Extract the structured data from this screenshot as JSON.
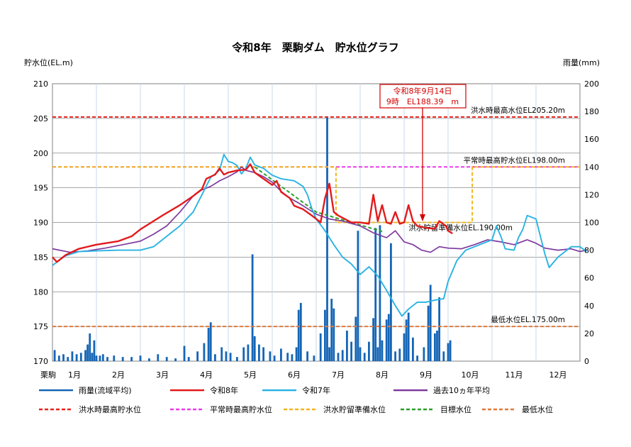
{
  "chart_data": {
    "type": "line",
    "title": "令和8年　栗駒ダム　貯水位グラフ",
    "ylabel_left": "貯水位(EL.m)",
    "ylabel_right": "雨量(mm)",
    "corner_label": "栗駒",
    "months": [
      "1月",
      "2月",
      "3月",
      "4月",
      "5月",
      "6月",
      "7月",
      "8月",
      "9月",
      "10月",
      "11月",
      "12月"
    ],
    "ylim_left": [
      170,
      210
    ],
    "yticks_left": [
      170,
      175,
      180,
      185,
      190,
      195,
      200,
      205,
      210
    ],
    "ylim_right": [
      0,
      200
    ],
    "yticks_right": [
      0,
      20,
      40,
      60,
      80,
      100,
      120,
      140,
      160,
      180,
      200
    ],
    "grid": true,
    "legend_position": "bottom",
    "reference_lines": [
      {
        "name": "洪水時最高貯水位",
        "label": "洪水時最高水位EL205.20m",
        "value": 205.2,
        "color": "#e8231d",
        "dash": "5,3"
      },
      {
        "name": "平常時最高貯水位",
        "label": "平常時最高貯水位EL198.00m",
        "value": 198.0,
        "color": "#ea3cea",
        "dash": "5,3"
      },
      {
        "name": "最低水位",
        "label": "最低水位EL.175.00m",
        "value": 175.0,
        "color": "#e07a3a",
        "dash": "5,3"
      }
    ],
    "flood_reserve": {
      "name": "洪水貯留準備水位",
      "label": "洪水貯留準備水位EL.190.00m",
      "color": "#f2b61f",
      "points": [
        [
          0.0,
          198.0
        ],
        [
          6.45,
          198.0
        ],
        [
          6.45,
          190.0
        ],
        [
          9.55,
          190.0
        ],
        [
          9.55,
          198.0
        ],
        [
          12.0,
          198.0
        ]
      ]
    },
    "target": {
      "name": "目標水位",
      "color": "#2ca02c",
      "points": [
        [
          4.6,
          198.0
        ],
        [
          6.0,
          191.5
        ],
        [
          7.5,
          188.7
        ]
      ]
    },
    "series": [
      {
        "name": "令和8年",
        "color": "#e31a1c",
        "width": 2.4,
        "points": [
          [
            0.0,
            185.0
          ],
          [
            0.1,
            184.3
          ],
          [
            0.3,
            185.3
          ],
          [
            0.6,
            186.2
          ],
          [
            1.0,
            186.8
          ],
          [
            1.5,
            187.3
          ],
          [
            1.8,
            188.0
          ],
          [
            2.0,
            189.0
          ],
          [
            2.5,
            191.0
          ],
          [
            2.9,
            192.5
          ],
          [
            3.2,
            193.8
          ],
          [
            3.4,
            194.8
          ],
          [
            3.5,
            196.3
          ],
          [
            3.7,
            196.9
          ],
          [
            3.8,
            197.8
          ],
          [
            3.9,
            196.9
          ],
          [
            4.0,
            197.2
          ],
          [
            4.2,
            197.5
          ],
          [
            4.4,
            197.6
          ],
          [
            4.5,
            198.4
          ],
          [
            4.6,
            197.2
          ],
          [
            4.8,
            196.3
          ],
          [
            5.0,
            195.4
          ],
          [
            5.1,
            196.0
          ],
          [
            5.2,
            194.4
          ],
          [
            5.4,
            193.5
          ],
          [
            5.5,
            192.4
          ],
          [
            5.7,
            191.9
          ],
          [
            5.9,
            191.0
          ],
          [
            6.1,
            190.0
          ],
          [
            6.2,
            193.5
          ],
          [
            6.3,
            195.6
          ],
          [
            6.4,
            191.5
          ],
          [
            6.5,
            191.0
          ],
          [
            6.8,
            190.0
          ],
          [
            7.0,
            190.0
          ],
          [
            7.2,
            189.8
          ],
          [
            7.3,
            194.0
          ],
          [
            7.4,
            190.2
          ],
          [
            7.5,
            192.5
          ],
          [
            7.6,
            190.0
          ],
          [
            7.7,
            189.8
          ],
          [
            7.8,
            191.5
          ],
          [
            7.9,
            189.8
          ],
          [
            8.0,
            190.0
          ],
          [
            8.1,
            192.5
          ],
          [
            8.2,
            190.2
          ],
          [
            8.3,
            189.5
          ],
          [
            8.5,
            189.2
          ],
          [
            8.7,
            189.1
          ],
          [
            8.8,
            190.2
          ],
          [
            8.95,
            189.5
          ],
          [
            9.0,
            188.8
          ],
          [
            9.1,
            188.4
          ]
        ]
      },
      {
        "name": "令和7年",
        "color": "#29b3e3",
        "width": 1.9,
        "points": [
          [
            0.0,
            183.8
          ],
          [
            0.3,
            185.2
          ],
          [
            0.6,
            185.8
          ],
          [
            1.0,
            185.9
          ],
          [
            1.5,
            186.0
          ],
          [
            2.0,
            186.0
          ],
          [
            2.3,
            186.5
          ],
          [
            2.6,
            188.0
          ],
          [
            2.9,
            189.5
          ],
          [
            3.2,
            191.5
          ],
          [
            3.4,
            194.0
          ],
          [
            3.6,
            196.5
          ],
          [
            3.8,
            197.5
          ],
          [
            3.9,
            199.8
          ],
          [
            4.0,
            198.8
          ],
          [
            4.1,
            198.6
          ],
          [
            4.2,
            198.2
          ],
          [
            4.3,
            197.0
          ],
          [
            4.4,
            197.8
          ],
          [
            4.5,
            199.4
          ],
          [
            4.6,
            198.3
          ],
          [
            4.8,
            197.8
          ],
          [
            5.0,
            196.8
          ],
          [
            5.2,
            196.3
          ],
          [
            5.5,
            196.0
          ],
          [
            5.7,
            195.2
          ],
          [
            5.8,
            194.0
          ],
          [
            5.9,
            192.0
          ],
          [
            6.0,
            190.5
          ],
          [
            6.2,
            188.8
          ],
          [
            6.4,
            186.8
          ],
          [
            6.6,
            185.0
          ],
          [
            6.8,
            184.0
          ],
          [
            7.0,
            182.5
          ],
          [
            7.2,
            183.6
          ],
          [
            7.4,
            182.3
          ],
          [
            7.6,
            180.2
          ],
          [
            7.8,
            178.0
          ],
          [
            7.95,
            176.5
          ],
          [
            8.1,
            177.5
          ],
          [
            8.3,
            178.5
          ],
          [
            8.5,
            178.5
          ],
          [
            8.7,
            178.8
          ],
          [
            8.9,
            179.0
          ],
          [
            9.0,
            181.5
          ],
          [
            9.2,
            184.5
          ],
          [
            9.4,
            186.0
          ],
          [
            9.6,
            186.5
          ],
          [
            9.8,
            187.0
          ],
          [
            10.0,
            187.5
          ],
          [
            10.1,
            189.5
          ],
          [
            10.2,
            188.0
          ],
          [
            10.3,
            186.2
          ],
          [
            10.5,
            186.0
          ],
          [
            10.6,
            187.8
          ],
          [
            10.7,
            189.0
          ],
          [
            10.8,
            191.0
          ],
          [
            11.0,
            190.5
          ],
          [
            11.1,
            188.0
          ],
          [
            11.2,
            185.5
          ],
          [
            11.3,
            183.5
          ],
          [
            11.5,
            185.0
          ],
          [
            11.8,
            186.5
          ],
          [
            12.0,
            186.5
          ],
          [
            12.15,
            185.8
          ]
        ]
      },
      {
        "name": "過去10ヵ年平均",
        "color": "#7f3a9e",
        "width": 1.7,
        "points": [
          [
            0.0,
            186.2
          ],
          [
            0.4,
            185.7
          ],
          [
            0.8,
            185.9
          ],
          [
            1.2,
            186.3
          ],
          [
            1.6,
            186.8
          ],
          [
            2.0,
            187.3
          ],
          [
            2.3,
            188.3
          ],
          [
            2.6,
            189.5
          ],
          [
            2.9,
            191.5
          ],
          [
            3.2,
            193.8
          ],
          [
            3.4,
            194.7
          ],
          [
            3.6,
            195.2
          ],
          [
            3.8,
            196.0
          ],
          [
            4.0,
            196.6
          ],
          [
            4.2,
            197.3
          ],
          [
            4.3,
            198.0
          ],
          [
            4.4,
            197.5
          ],
          [
            4.6,
            197.2
          ],
          [
            4.8,
            196.6
          ],
          [
            5.0,
            195.8
          ],
          [
            5.2,
            194.5
          ],
          [
            5.4,
            193.5
          ],
          [
            5.6,
            192.8
          ],
          [
            5.8,
            192.0
          ],
          [
            6.0,
            191.2
          ],
          [
            6.3,
            190.5
          ],
          [
            6.6,
            190.2
          ],
          [
            7.0,
            189.5
          ],
          [
            7.3,
            188.5
          ],
          [
            7.6,
            187.8
          ],
          [
            7.8,
            188.8
          ],
          [
            8.0,
            187.2
          ],
          [
            8.2,
            186.8
          ],
          [
            8.4,
            186.0
          ],
          [
            8.6,
            185.7
          ],
          [
            8.8,
            186.5
          ],
          [
            9.0,
            186.3
          ],
          [
            9.3,
            186.2
          ],
          [
            9.6,
            186.8
          ],
          [
            9.9,
            187.5
          ],
          [
            10.2,
            187.2
          ],
          [
            10.5,
            186.8
          ],
          [
            10.8,
            187.5
          ],
          [
            11.0,
            187.0
          ],
          [
            11.2,
            186.3
          ],
          [
            11.5,
            186.0
          ],
          [
            11.8,
            186.2
          ],
          [
            12.0,
            185.8
          ],
          [
            12.15,
            186.0
          ]
        ]
      }
    ],
    "rainfall": {
      "name": "雨量(流域平均)",
      "color": "#1565b6",
      "bars": [
        [
          0.05,
          8
        ],
        [
          0.15,
          4
        ],
        [
          0.25,
          5
        ],
        [
          0.35,
          3
        ],
        [
          0.45,
          7
        ],
        [
          0.55,
          5
        ],
        [
          0.65,
          6
        ],
        [
          0.75,
          8
        ],
        [
          0.8,
          12
        ],
        [
          0.85,
          20
        ],
        [
          0.9,
          6
        ],
        [
          0.95,
          15
        ],
        [
          1.0,
          4
        ],
        [
          1.08,
          4
        ],
        [
          1.15,
          5
        ],
        [
          1.25,
          3
        ],
        [
          1.4,
          4
        ],
        [
          1.6,
          3
        ],
        [
          1.8,
          3
        ],
        [
          2.0,
          4
        ],
        [
          2.2,
          2
        ],
        [
          2.4,
          5
        ],
        [
          2.6,
          3
        ],
        [
          2.8,
          2
        ],
        [
          3.0,
          11
        ],
        [
          3.1,
          3
        ],
        [
          3.3,
          7
        ],
        [
          3.45,
          13
        ],
        [
          3.55,
          24
        ],
        [
          3.6,
          28
        ],
        [
          3.7,
          5
        ],
        [
          3.85,
          10
        ],
        [
          3.95,
          7
        ],
        [
          4.05,
          6
        ],
        [
          4.2,
          3
        ],
        [
          4.35,
          10
        ],
        [
          4.45,
          12
        ],
        [
          4.55,
          77
        ],
        [
          4.6,
          18
        ],
        [
          4.7,
          12
        ],
        [
          4.8,
          10
        ],
        [
          4.95,
          7
        ],
        [
          5.05,
          4
        ],
        [
          5.2,
          9
        ],
        [
          5.35,
          6
        ],
        [
          5.45,
          5
        ],
        [
          5.55,
          10
        ],
        [
          5.6,
          37
        ],
        [
          5.65,
          42
        ],
        [
          5.8,
          7
        ],
        [
          5.95,
          4
        ],
        [
          6.1,
          20
        ],
        [
          6.2,
          37
        ],
        [
          6.25,
          176
        ],
        [
          6.3,
          10
        ],
        [
          6.35,
          45
        ],
        [
          6.4,
          38
        ],
        [
          6.5,
          6
        ],
        [
          6.6,
          8
        ],
        [
          6.7,
          22
        ],
        [
          6.8,
          14
        ],
        [
          6.9,
          32
        ],
        [
          6.95,
          94
        ],
        [
          7.0,
          10
        ],
        [
          7.1,
          6
        ],
        [
          7.2,
          14
        ],
        [
          7.3,
          31
        ],
        [
          7.35,
          96
        ],
        [
          7.4,
          10
        ],
        [
          7.45,
          98
        ],
        [
          7.5,
          15
        ],
        [
          7.6,
          30
        ],
        [
          7.65,
          34
        ],
        [
          7.7,
          85
        ],
        [
          7.8,
          7
        ],
        [
          7.9,
          9
        ],
        [
          8.0,
          20
        ],
        [
          8.05,
          30
        ],
        [
          8.1,
          35
        ],
        [
          8.2,
          17
        ],
        [
          8.3,
          4
        ],
        [
          8.45,
          10
        ],
        [
          8.55,
          40
        ],
        [
          8.6,
          55
        ],
        [
          8.7,
          20
        ],
        [
          8.75,
          22
        ],
        [
          8.8,
          46
        ],
        [
          8.9,
          7
        ],
        [
          9.0,
          13
        ],
        [
          9.05,
          15
        ]
      ]
    },
    "callout": {
      "line1": "令和8年9月14日",
      "line2": "9時　EL188.39　m",
      "color": "#d40000"
    },
    "legend": [
      {
        "label": "雨量(流域平均)",
        "color": "#1565b6",
        "dash": ""
      },
      {
        "label": "令和8年",
        "color": "#e31a1c",
        "dash": ""
      },
      {
        "label": "令和7年",
        "color": "#29b3e3",
        "dash": ""
      },
      {
        "label": "過去10ヵ年平均",
        "color": "#7f3a9e",
        "dash": ""
      },
      {
        "label": "洪水時最高貯水位",
        "color": "#e8231d",
        "dash": "5,3"
      },
      {
        "label": "平常時最高貯水位",
        "color": "#ea3cea",
        "dash": "5,3"
      },
      {
        "label": "洪水貯留準備水位",
        "color": "#f2b61f",
        "dash": "5,3"
      },
      {
        "label": "目標水位",
        "color": "#2ca02c",
        "dash": "5,3"
      },
      {
        "label": "最低水位",
        "color": "#e07a3a",
        "dash": "5,3"
      }
    ]
  }
}
